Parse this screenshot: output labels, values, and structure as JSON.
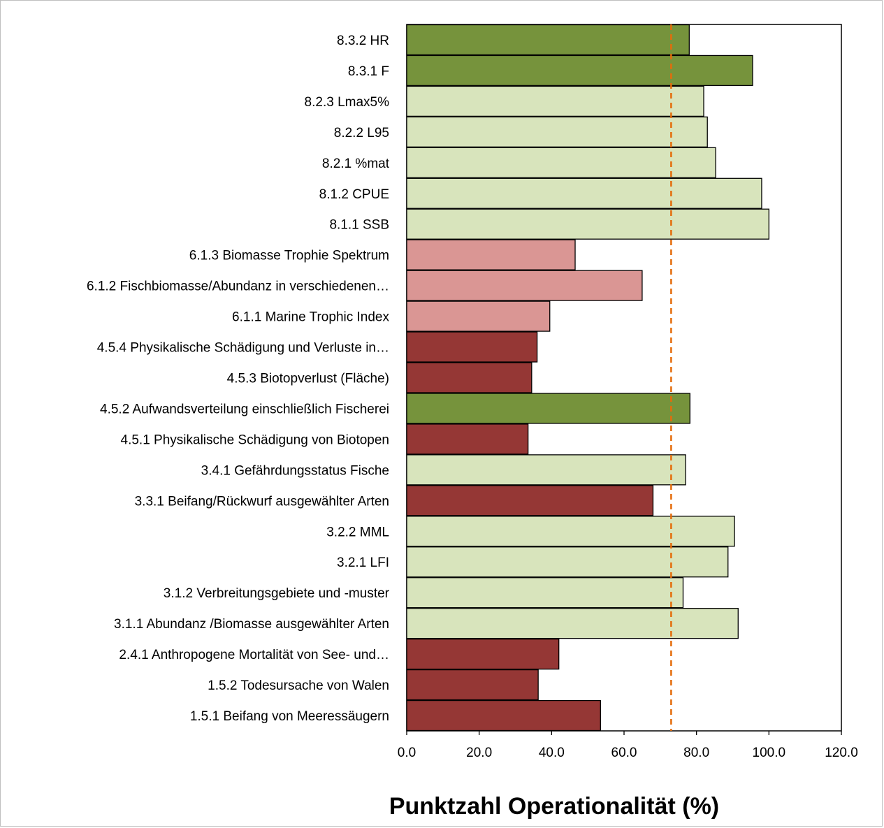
{
  "chart_data": {
    "type": "bar",
    "orientation": "horizontal",
    "title": "",
    "xlabel": "Punktzahl Operationalität (%)",
    "ylabel": "",
    "xlim": [
      0,
      120
    ],
    "xticks": [
      "0.0",
      "20.0",
      "40.0",
      "60.0",
      "80.0",
      "100.0",
      "120.0"
    ],
    "xtick_values": [
      0,
      20,
      40,
      60,
      80,
      100,
      120
    ],
    "grid": false,
    "legend": "none",
    "reference_line": {
      "value": 73,
      "style": "dashed",
      "color": "#e46c0a"
    },
    "colors": {
      "dark_green": "#76933c",
      "light_green": "#d8e4bc",
      "pink": "#da9694",
      "dark_red": "#953735"
    },
    "categories": [
      "8.3.2 HR",
      "8.3.1 F",
      "8.2.3 Lmax5%",
      "8.2.2 L95",
      "8.2.1 %mat",
      "8.1.2 CPUE",
      "8.1.1 SSB",
      "6.1.3 Biomasse Trophie Spektrum",
      "6.1.2 Fischbiomasse/Abundanz in verschiedenen…",
      "6.1.1  Marine Trophic Index",
      "4.5.4 Physikalische Schädigung und Verluste in…",
      "4.5.3 Biotopverlust (Fläche)",
      "4.5.2 Aufwandsverteilung einschließlich Fischerei",
      "4.5.1 Physikalische Schädigung von Biotopen",
      "3.4.1 Gefährdungsstatus Fische",
      "3.3.1 Beifang/Rückwurf ausgewählter Arten",
      "3.2.2 MML",
      "3.2.1  LFI",
      "3.1.2 Verbreitungsgebiete und -muster",
      "3.1.1  Abundanz /Biomasse ausgewählter Arten",
      "2.4.1 Anthropogene Mortalität von See- und…",
      "1.5.2 Todesursache von Walen",
      "1.5.1 Beifang von Meeressäugern"
    ],
    "values": [
      78,
      95.5,
      82,
      83,
      85.3,
      98,
      100,
      46.5,
      65,
      39.5,
      36,
      34.5,
      78.2,
      33.5,
      77,
      68,
      90.5,
      88.7,
      76.3,
      91.5,
      42,
      36.3,
      53.5
    ],
    "bar_colors": [
      "dark_green",
      "dark_green",
      "light_green",
      "light_green",
      "light_green",
      "light_green",
      "light_green",
      "pink",
      "pink",
      "pink",
      "dark_red",
      "dark_red",
      "dark_green",
      "dark_red",
      "light_green",
      "dark_red",
      "light_green",
      "light_green",
      "light_green",
      "light_green",
      "dark_red",
      "dark_red",
      "dark_red"
    ]
  }
}
